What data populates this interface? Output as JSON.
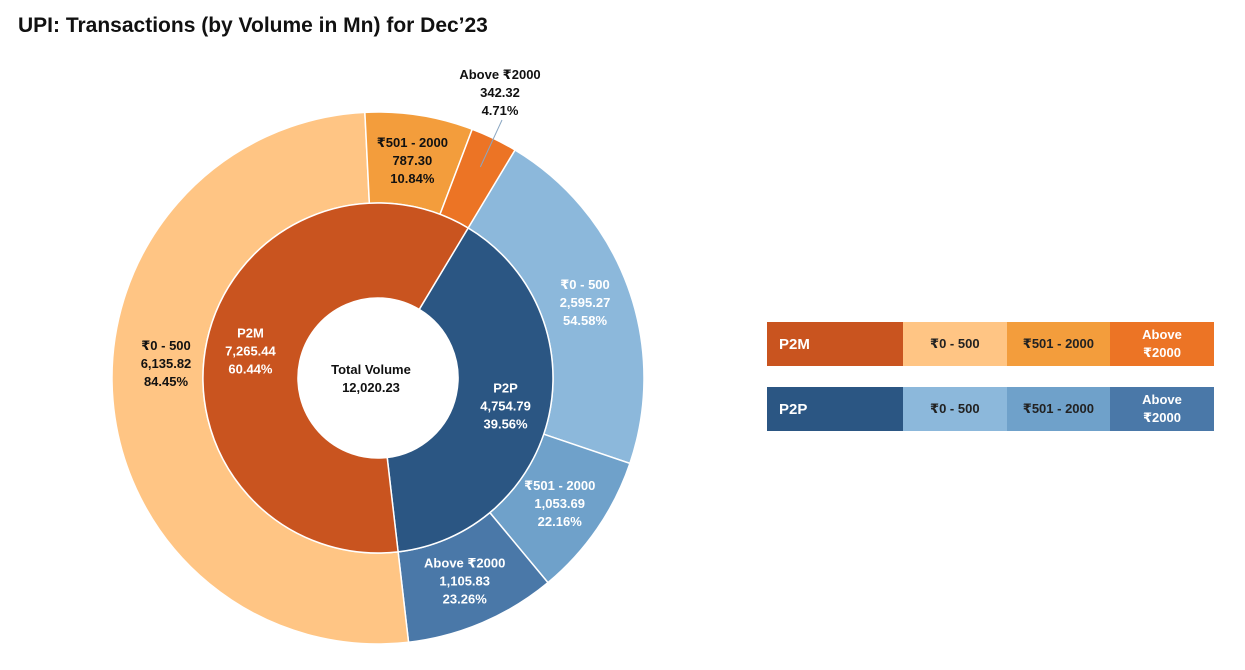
{
  "title": "UPI: Transactions (by Volume in Mn) for Dec’23",
  "chart_data": {
    "type": "sunburst",
    "center": {
      "label": "Total Volume",
      "value": "12,020.23"
    },
    "inner": [
      {
        "name": "P2M",
        "value": 7265.44,
        "value_label": "7,265.44",
        "pct_label": "60.44%",
        "color": "#C9541F"
      },
      {
        "name": "P2P",
        "value": 4754.79,
        "value_label": "4,754.79",
        "pct_label": "39.56%",
        "color": "#2B5683"
      }
    ],
    "outer": [
      {
        "parent": "P2M",
        "name": "₹0 - 500",
        "value": 6135.82,
        "value_label": "6,135.82",
        "pct_label": "84.45%",
        "color": "#FFC584"
      },
      {
        "parent": "P2M",
        "name": "₹501 - 2000",
        "value": 787.3,
        "value_label": "787.30",
        "pct_label": "10.84%",
        "color": "#F39D3C"
      },
      {
        "parent": "P2M",
        "name": "Above ₹2000",
        "value": 342.32,
        "value_label": "342.32",
        "pct_label": "4.71%",
        "color": "#EC7425"
      },
      {
        "parent": "P2P",
        "name": "₹0 - 500",
        "value": 2595.27,
        "value_label": "2,595.27",
        "pct_label": "54.58%",
        "color": "#8CB8DB"
      },
      {
        "parent": "P2P",
        "name": "₹501 - 2000",
        "value": 1053.69,
        "value_label": "1,053.69",
        "pct_label": "22.16%",
        "color": "#6FA1CA"
      },
      {
        "parent": "P2P",
        "name": "Above ₹2000",
        "value": 1105.83,
        "value_label": "1,105.83",
        "pct_label": "23.26%",
        "color": "#4A78A8"
      }
    ]
  },
  "legend": [
    {
      "group": "P2M",
      "color": "#C9541F",
      "items": [
        {
          "label": "₹0 - 500",
          "color": "#FFC584",
          "text_color": "#222222"
        },
        {
          "label": "₹501 - 2000",
          "color": "#F39D3C",
          "text_color": "#222222"
        },
        {
          "label": "Above ₹2000",
          "color": "#EC7425",
          "text_color": "#ffffff"
        }
      ]
    },
    {
      "group": "P2P",
      "color": "#2B5683",
      "items": [
        {
          "label": "₹0 - 500",
          "color": "#8CB8DB",
          "text_color": "#222222"
        },
        {
          "label": "₹501 - 2000",
          "color": "#6FA1CA",
          "text_color": "#222222"
        },
        {
          "label": "Above ₹2000",
          "color": "#4A78A8",
          "text_color": "#ffffff"
        }
      ]
    }
  ]
}
